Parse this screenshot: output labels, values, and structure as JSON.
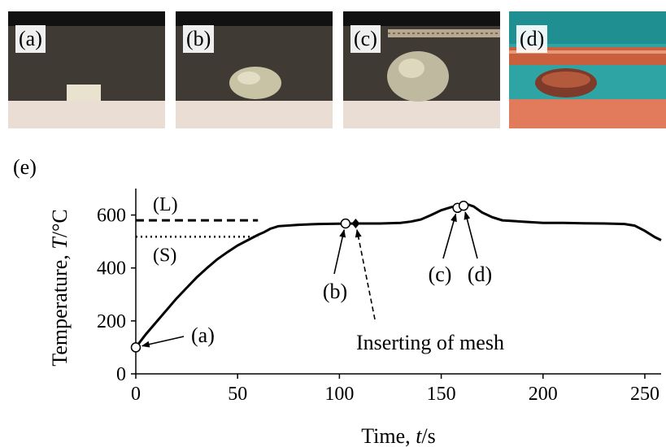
{
  "photos": [
    {
      "label": "(a)"
    },
    {
      "label": "(b)"
    },
    {
      "label": "(c)"
    },
    {
      "label": "(d)"
    }
  ],
  "panel_e_label": "(e)",
  "chart_data": {
    "type": "line",
    "xlabel_prefix": "Time, ",
    "xlabel_var": "t",
    "xlabel_unit": "/s",
    "ylabel_prefix": "Temperature, ",
    "ylabel_var": "T",
    "ylabel_unit": "/°C",
    "xlim": [
      0,
      258
    ],
    "ylim": [
      0,
      700
    ],
    "xticks": [
      0,
      50,
      100,
      150,
      200,
      250
    ],
    "yticks": [
      0,
      200,
      400,
      600
    ],
    "series": [
      {
        "x": [
          0,
          5,
          10,
          15,
          20,
          25,
          30,
          35,
          40,
          45,
          50,
          55,
          60,
          63,
          66,
          70,
          80,
          90,
          100,
          110,
          120,
          130,
          135,
          140,
          145,
          150,
          155,
          160,
          163,
          166,
          170,
          175,
          180,
          190,
          200,
          210,
          220,
          230,
          240,
          245,
          250,
          255,
          258
        ],
        "y": [
          100,
          150,
          195,
          240,
          285,
          325,
          365,
          400,
          433,
          460,
          485,
          505,
          525,
          535,
          548,
          558,
          563,
          566,
          567,
          568,
          568,
          570,
          575,
          583,
          600,
          618,
          630,
          638,
          640,
          632,
          610,
          592,
          580,
          575,
          570,
          570,
          569,
          568,
          566,
          560,
          540,
          516,
          505
        ]
      }
    ],
    "reference_lines": [
      {
        "label": "(L)",
        "y": 580,
        "x_range": [
          0,
          60
        ],
        "style": "dashed"
      },
      {
        "label": "(S)",
        "y": 518,
        "x_range": [
          0,
          60
        ],
        "style": "dotted"
      }
    ],
    "markers": [
      {
        "id": "a",
        "x": 0,
        "y": 100,
        "shape": "circle"
      },
      {
        "id": "b",
        "x": 103,
        "y": 568,
        "shape": "circle"
      },
      {
        "id": "mesh",
        "x": 108,
        "y": 568,
        "shape": "diamond"
      },
      {
        "id": "c",
        "x": 158,
        "y": 627,
        "shape": "circle"
      },
      {
        "id": "d",
        "x": 161,
        "y": 635,
        "shape": "circle"
      }
    ],
    "annotations": [
      {
        "text": "(a)",
        "arrow_to": "a"
      },
      {
        "text": "(b)",
        "arrow_to": "b"
      },
      {
        "text": "Inserting of mesh",
        "arrow_to": "mesh"
      },
      {
        "text": "(c)",
        "arrow_to": "c"
      },
      {
        "text": "(d)",
        "arrow_to": "d"
      }
    ]
  }
}
